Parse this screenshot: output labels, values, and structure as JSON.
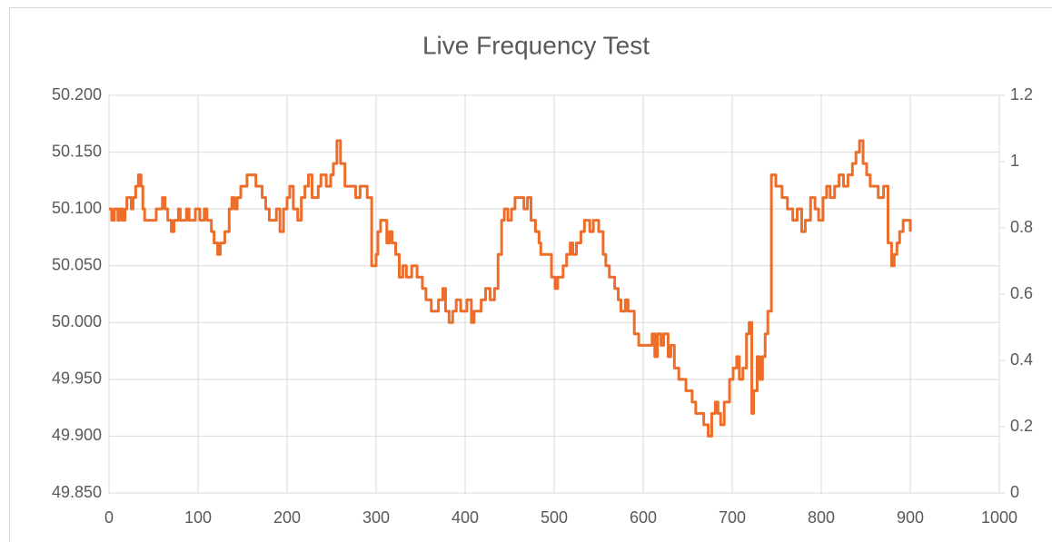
{
  "chart_data": {
    "type": "line",
    "title": "Live Frequency Test",
    "line_style": "step",
    "color": "#ed6d2b",
    "x": [
      0,
      3,
      6,
      10,
      12,
      15,
      18,
      20,
      25,
      27,
      30,
      33,
      36,
      38,
      40,
      50,
      53,
      60,
      63,
      66,
      70,
      73,
      78,
      80,
      87,
      90,
      97,
      102,
      107,
      110,
      115,
      118,
      122,
      125,
      130,
      135,
      138,
      141,
      144,
      148,
      155,
      165,
      172,
      176,
      180,
      188,
      192,
      196,
      200,
      203,
      207,
      212,
      216,
      220,
      224,
      228,
      235,
      238,
      244,
      249,
      252,
      256,
      260,
      265,
      277,
      282,
      290,
      295,
      300,
      302,
      305,
      312,
      315,
      318,
      322,
      326,
      330,
      334,
      340,
      346,
      352,
      356,
      362,
      370,
      375,
      378,
      382,
      386,
      390,
      395,
      402,
      407,
      410,
      418,
      423,
      428,
      433,
      437,
      441,
      444,
      448,
      452,
      456,
      466,
      470,
      474,
      479,
      483,
      485,
      497,
      501,
      504,
      510,
      514,
      518,
      521,
      525,
      530,
      534,
      540,
      544,
      550,
      555,
      558,
      562,
      568,
      572,
      575,
      580,
      583,
      590,
      595,
      610,
      613,
      616,
      620,
      623,
      628,
      631,
      635,
      640,
      648,
      655,
      659,
      668,
      673,
      677,
      681,
      684,
      687,
      691,
      697,
      701,
      705,
      708,
      712,
      716,
      719,
      722,
      724,
      728,
      731,
      734,
      737,
      740,
      744,
      749,
      756,
      762,
      768,
      773,
      778,
      782,
      788,
      793,
      797,
      802,
      806,
      810,
      815,
      820,
      825,
      830,
      835,
      839,
      843,
      847,
      851,
      855,
      864,
      870,
      875,
      879,
      882,
      885,
      888,
      892,
      900
    ],
    "values": [
      50.1,
      50.09,
      50.1,
      50.09,
      50.1,
      50.09,
      50.1,
      50.11,
      50.1,
      50.11,
      50.12,
      50.13,
      50.12,
      50.1,
      50.09,
      50.09,
      50.1,
      50.11,
      50.1,
      50.09,
      50.08,
      50.09,
      50.1,
      50.09,
      50.1,
      50.09,
      50.1,
      50.09,
      50.1,
      50.09,
      50.08,
      50.07,
      50.06,
      50.07,
      50.08,
      50.1,
      50.11,
      50.1,
      50.11,
      50.12,
      50.13,
      50.12,
      50.11,
      50.1,
      50.09,
      50.1,
      50.08,
      50.1,
      50.11,
      50.12,
      50.1,
      50.09,
      50.11,
      50.12,
      50.13,
      50.11,
      50.12,
      50.13,
      50.12,
      50.13,
      50.14,
      50.16,
      50.14,
      50.12,
      50.11,
      50.12,
      50.11,
      50.05,
      50.06,
      50.08,
      50.09,
      50.07,
      50.08,
      50.07,
      50.06,
      50.04,
      50.05,
      50.04,
      50.05,
      50.04,
      50.03,
      50.02,
      50.01,
      50.02,
      50.03,
      50.01,
      50.0,
      50.01,
      50.02,
      50.01,
      50.02,
      50.0,
      50.01,
      50.02,
      50.03,
      50.02,
      50.03,
      50.06,
      50.09,
      50.1,
      50.09,
      50.1,
      50.11,
      50.1,
      50.11,
      50.09,
      50.08,
      50.07,
      50.06,
      50.04,
      50.03,
      50.04,
      50.05,
      50.06,
      50.07,
      50.06,
      50.07,
      50.08,
      50.09,
      50.08,
      50.09,
      50.08,
      50.06,
      50.05,
      50.04,
      50.03,
      50.02,
      50.01,
      50.02,
      50.01,
      49.99,
      49.98,
      49.99,
      49.97,
      49.99,
      49.98,
      49.99,
      49.97,
      49.98,
      49.96,
      49.95,
      49.94,
      49.93,
      49.92,
      49.91,
      49.9,
      49.92,
      49.93,
      49.92,
      49.91,
      49.93,
      49.95,
      49.96,
      49.97,
      49.95,
      49.96,
      49.99,
      50.0,
      49.92,
      49.94,
      49.97,
      49.95,
      49.97,
      49.99,
      50.01,
      50.13,
      50.12,
      50.11,
      50.1,
      50.09,
      50.1,
      50.08,
      50.09,
      50.11,
      50.1,
      50.09,
      50.11,
      50.12,
      50.11,
      50.12,
      50.13,
      50.12,
      50.13,
      50.14,
      50.15,
      50.16,
      50.14,
      50.13,
      50.12,
      50.11,
      50.12,
      50.07,
      50.05,
      50.06,
      50.07,
      50.08,
      50.09,
      50.08
    ],
    "xlim": [
      0,
      1000
    ],
    "xticks": [
      0,
      100,
      200,
      300,
      400,
      500,
      600,
      700,
      800,
      900,
      1000
    ],
    "ylim": [
      49.85,
      50.2
    ],
    "yticks": [
      {
        "value": 49.85,
        "label": "49.850"
      },
      {
        "value": 49.9,
        "label": "49.900"
      },
      {
        "value": 49.95,
        "label": "49.950"
      },
      {
        "value": 50.0,
        "label": "50.000"
      },
      {
        "value": 50.05,
        "label": "50.050"
      },
      {
        "value": 50.1,
        "label": "50.100"
      },
      {
        "value": 50.15,
        "label": "50.150"
      },
      {
        "value": 50.2,
        "label": "50.200"
      }
    ],
    "y2lim": [
      0,
      1.2
    ],
    "y2ticks": [
      0,
      0.2,
      0.4,
      0.6,
      0.8,
      1,
      1.2
    ],
    "grid": true
  }
}
